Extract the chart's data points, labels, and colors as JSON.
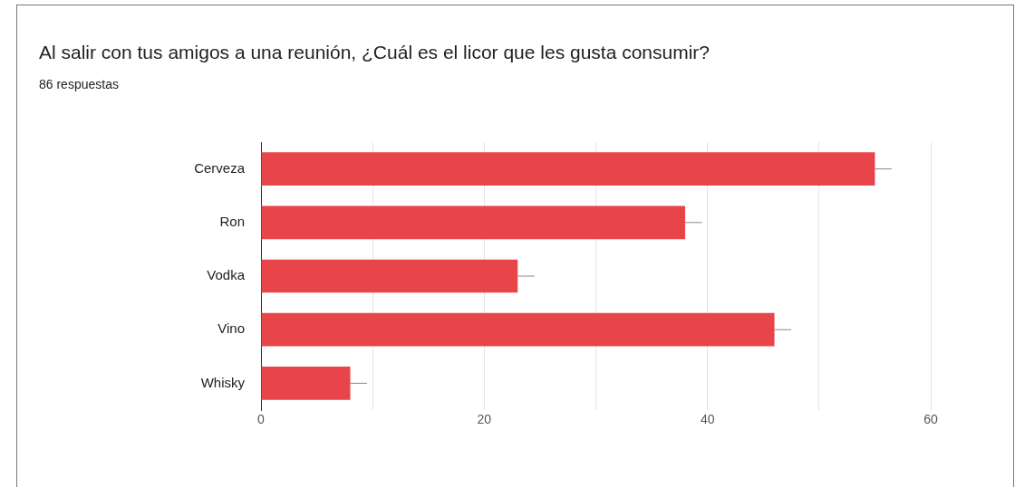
{
  "chart_data": {
    "type": "bar",
    "orientation": "horizontal",
    "title": "Al salir con tus amigos a una reunión, ¿Cuál es el licor que les gusta consumir?",
    "subtitle": "86 respuestas",
    "categories": [
      "Cerveza",
      "Ron",
      "Vodka",
      "Vino",
      "Whisky"
    ],
    "values": [
      55,
      38,
      23,
      46,
      8
    ],
    "errors": [
      [
        55,
        56.5
      ],
      [
        38,
        39.5
      ],
      [
        23,
        24.5
      ],
      [
        46,
        47.5
      ],
      [
        8,
        9.5
      ]
    ],
    "color": "#e8454a",
    "xlim": [
      0,
      60
    ],
    "xticks": [
      0,
      {
        "value": 10,
        "label": null
      },
      20,
      {
        "value": 30,
        "label": null
      },
      40,
      {
        "value": 50,
        "label": null
      },
      60
    ],
    "grid": "x",
    "legend": false
  }
}
